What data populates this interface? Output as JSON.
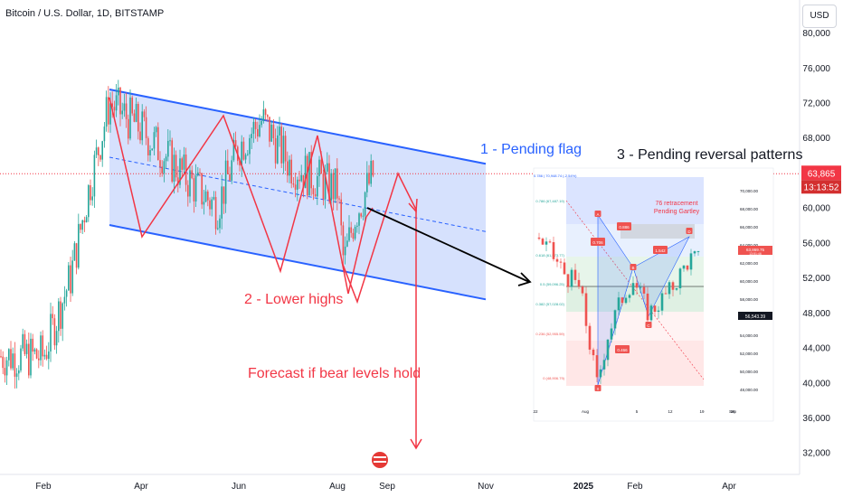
{
  "symbol": {
    "title": "Bitcoin / U.S. Dollar, 1D, BITSTAMP"
  },
  "currency_button": "USD",
  "price_axis": {
    "ticks": [
      "80,000",
      "76,000",
      "72,000",
      "68,000",
      "64,000",
      "60,000",
      "56,000",
      "52,000",
      "48,000",
      "44,000",
      "40,000",
      "36,000",
      "32,000"
    ],
    "current_price": "63,865",
    "countdown": "13:13:52",
    "current_color": "#f23645"
  },
  "time_axis": {
    "ticks": [
      "Feb",
      "Apr",
      "Jun",
      "Aug",
      "Sep",
      "Nov",
      "2025",
      "Feb",
      "Apr"
    ]
  },
  "annotations": {
    "pending_flag": "1 - Pending flag",
    "lower_highs": "2 - Lower highs",
    "forecast": "Forecast if bear levels hold",
    "reversal": "3 - Pending reversal patterns"
  },
  "inset": {
    "note_line1": "76 retracement",
    "note_line2": "Pending Gartley",
    "top_label": "0.786 | 70,948.74 (-2.54%)",
    "fib_levels": [
      "0.786 (67,487.19)",
      "0.618 (61,573.77)",
      "0.5 (59,096.25)",
      "0.382 (57,028.02)",
      "0.236 (52,955.59)",
      "0 (48,906.79)"
    ],
    "price_ticks": [
      "70,000.00",
      "68,000.00",
      "66,000.00",
      "64,000.00",
      "62,000.00",
      "60,000.00",
      "58,000.00",
      "56,000.00",
      "54,000.00",
      "52,000.00",
      "50,000.00",
      "48,000.00"
    ],
    "current_price": "63,869.75",
    "current_sub": "13:51:46",
    "level_badge": "56,543.39",
    "pattern_ratios": [
      "0.886",
      "0.706",
      "1.542",
      "0.466"
    ],
    "point_letters": [
      "X",
      "A",
      "B",
      "C",
      "D"
    ],
    "date_ticks": [
      "22",
      "Aug",
      "5",
      "12",
      "19",
      "26",
      "Sep"
    ]
  },
  "colors": {
    "up": "#26a69a",
    "down": "#ef5350",
    "channel_fill": "#cfdcfd",
    "channel_line": "#2962ff",
    "annotation_red": "#f23645",
    "annotation_blue": "#2962ff"
  },
  "chart_data": {
    "type": "candlestick",
    "title": "Bitcoin / U.S. Dollar, 1D, BITSTAMP",
    "y_unit": "USD",
    "ylim": [
      30000,
      82500
    ],
    "x": [
      "Jan-15",
      "Feb-01",
      "Feb-15",
      "Mar-01",
      "Mar-15",
      "Apr-01",
      "Apr-15",
      "May-01",
      "May-15",
      "Jun-01",
      "Jun-15",
      "Jul-01",
      "Jul-15",
      "Aug-01",
      "Aug-05",
      "Aug-15",
      "Aug-25"
    ],
    "close": [
      43000,
      43000,
      52000,
      62000,
      72000,
      69000,
      64000,
      60000,
      67000,
      70000,
      65000,
      62000,
      64000,
      64000,
      53500,
      59000,
      63865
    ],
    "last_price": 63865,
    "channel": {
      "upper_start": 73500,
      "upper_end": 65000,
      "lower_start": 58000,
      "lower_end": 49500
    },
    "projection_low": 31000
  }
}
